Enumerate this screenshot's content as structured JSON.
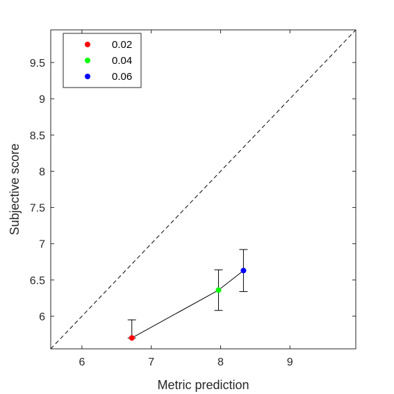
{
  "chart_data": {
    "type": "scatter",
    "title": "",
    "xlabel": "Metric prediction",
    "ylabel": "Subjective score",
    "xlim": [
      5.55,
      9.95
    ],
    "ylim": [
      5.55,
      9.95
    ],
    "xticks": [
      6,
      7,
      8,
      9
    ],
    "yticks": [
      6,
      6.5,
      7,
      7.5,
      8,
      8.5,
      9,
      9.5
    ],
    "x_tick_labels": [
      "6",
      "7",
      "8",
      "9"
    ],
    "y_tick_labels": [
      "6",
      "6.5",
      "7",
      "7.5",
      "8",
      "8.5",
      "9",
      "9.5"
    ],
    "grid": false,
    "legend_position": "top-left",
    "reference_line": {
      "style": "dashed",
      "from": [
        5.55,
        5.55
      ],
      "to": [
        9.95,
        9.95
      ]
    },
    "connect_points": true,
    "points": [
      {
        "label": "0.02",
        "x": 6.72,
        "y": 5.7,
        "err_low": 5.7,
        "err_high": 5.95,
        "color": "#ff0000"
      },
      {
        "label": "0.04",
        "x": 7.97,
        "y": 6.36,
        "err_low": 6.08,
        "err_high": 6.64,
        "color": "#00ff00"
      },
      {
        "label": "0.06",
        "x": 8.33,
        "y": 6.63,
        "err_low": 6.34,
        "err_high": 6.92,
        "color": "#0000ff"
      }
    ]
  }
}
